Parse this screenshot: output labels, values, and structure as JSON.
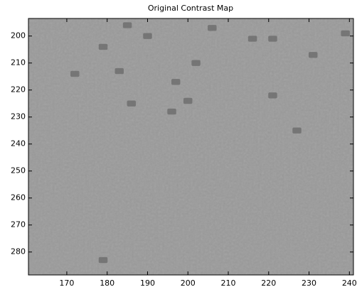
{
  "chart_data": {
    "type": "image",
    "title": "Original Contrast Map",
    "x": [
      172,
      179,
      183,
      186,
      190,
      185,
      196,
      197,
      200,
      202,
      206,
      216,
      221,
      221,
      227,
      231,
      239,
      179
    ],
    "y": [
      214,
      204,
      213,
      225,
      200,
      196,
      228,
      217,
      224,
      210,
      197,
      201,
      201,
      222,
      235,
      207,
      199,
      283
    ],
    "color": "#6e6e6e",
    "background": "#9a9a9a",
    "xlim": [
      160.5,
      241
    ],
    "ylim": [
      193.5,
      288.5
    ],
    "y_reversed": true,
    "xticks": [
      170,
      180,
      190,
      200,
      210,
      220,
      230,
      240
    ],
    "yticks": [
      200,
      210,
      220,
      230,
      240,
      250,
      260,
      270,
      280
    ]
  }
}
